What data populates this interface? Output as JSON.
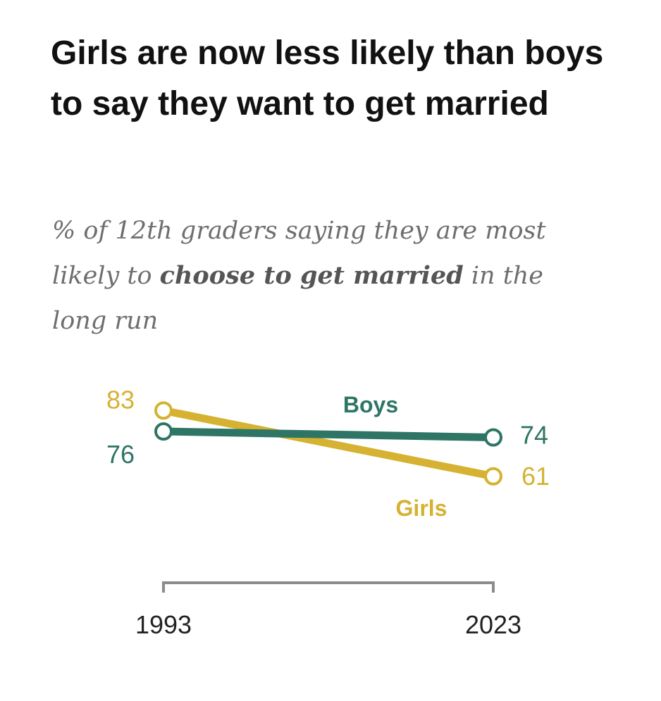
{
  "header": {
    "title": "Girls are now less likely than boys to say they want to get married",
    "subtitle_part1": "% of 12th graders saying they are most likely to ",
    "subtitle_bold": "choose to get married",
    "subtitle_part2": " in the long run"
  },
  "colors": {
    "boys": "#2e7565",
    "girls": "#d6b232",
    "axis": "#8c8c8c"
  },
  "chart_data": {
    "type": "line",
    "title": "Girls are now less likely than boys to say they want to get married",
    "subtitle": "% of 12th graders saying they are most likely to choose to get married in the long run",
    "x": [
      "1993",
      "2023"
    ],
    "xlabel": "",
    "ylabel": "",
    "ylim": [
      55,
      90
    ],
    "grid": false,
    "series": [
      {
        "name": "Boys",
        "values": [
          76,
          74
        ],
        "labels": [
          "76",
          "74"
        ]
      },
      {
        "name": "Girls",
        "values": [
          83,
          61
        ],
        "labels": [
          "83",
          "61"
        ]
      }
    ]
  }
}
